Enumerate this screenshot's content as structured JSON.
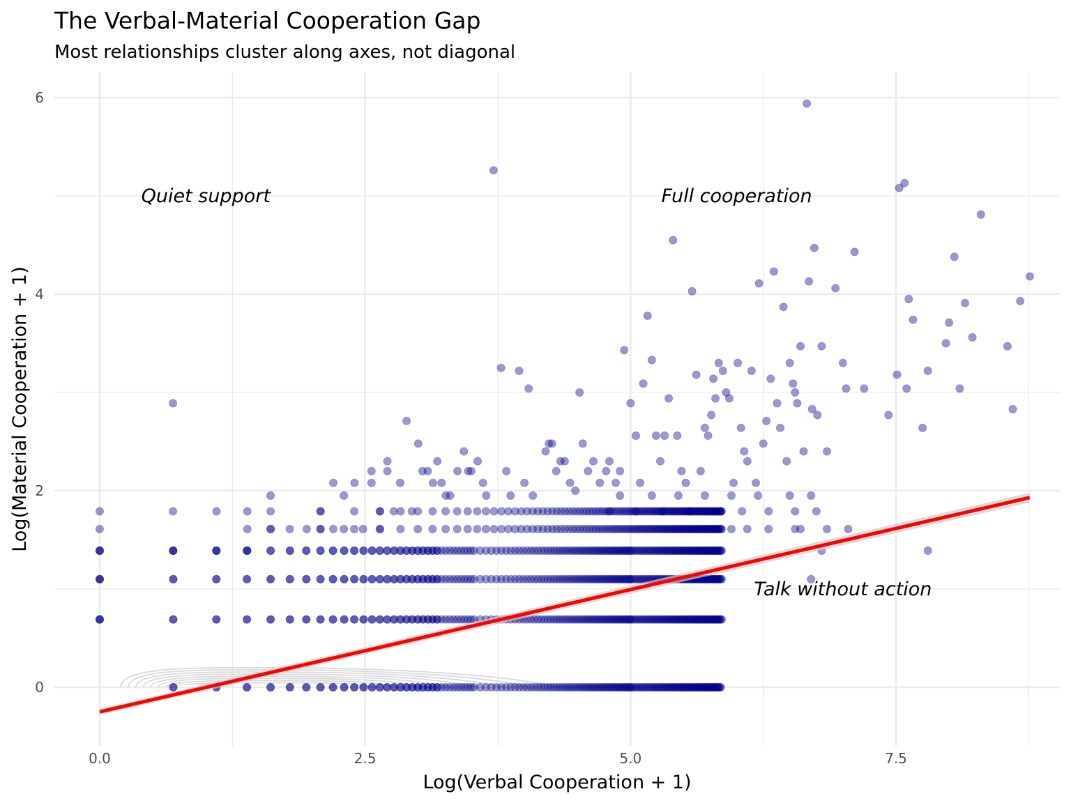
{
  "chart_data": {
    "type": "scatter",
    "title": "The Verbal-Material Cooperation Gap",
    "subtitle": "Most relationships cluster along axes, not diagonal",
    "xlabel": "Log(Verbal Cooperation + 1)",
    "ylabel": "Log(Material Cooperation + 1)",
    "xlim": [
      -0.4,
      9.2
    ],
    "ylim": [
      -0.6,
      6.25
    ],
    "x_ticks": [
      0,
      2.5,
      5,
      7.5
    ],
    "x_tick_labels": [
      "0.0",
      "2.5",
      "5.0",
      "7.5"
    ],
    "y_ticks": [
      0,
      2,
      4,
      6
    ],
    "y_tick_labels": [
      "0",
      "2",
      "4",
      "6"
    ],
    "grid": true,
    "legend": "none",
    "point_color": "#00008b",
    "point_alpha": 0.4,
    "fit_line": {
      "color": "#ff0000",
      "x": [
        0,
        8.76
      ],
      "y": [
        -0.25,
        1.93
      ]
    },
    "contour_color": "#d9d9d9",
    "annotations": [
      {
        "text": "Quiet support",
        "x": 1.0,
        "y": 5.0
      },
      {
        "text": "Full cooperation",
        "x": 6.0,
        "y": 5.0
      },
      {
        "text": "Talk without action",
        "x": 7.0,
        "y": 1.0
      }
    ],
    "band_points": [
      {
        "y": 0,
        "xmin": 0.69,
        "xmax": 5.85
      },
      {
        "y": 0.69,
        "xmin": 0.0,
        "xmax": 6.2
      },
      {
        "y": 1.1,
        "xmin": 0.0,
        "xmax": 6.1
      },
      {
        "y": 1.39,
        "xmin": 0.0,
        "xmax": 5.9
      }
    ],
    "points": [
      [
        0.0,
        1.79
      ],
      [
        0.0,
        1.61
      ],
      [
        0.69,
        2.89
      ],
      [
        0.69,
        1.79
      ],
      [
        0.69,
        1.39
      ],
      [
        1.1,
        1.79
      ],
      [
        1.1,
        1.39
      ],
      [
        1.39,
        1.79
      ],
      [
        1.39,
        1.61
      ],
      [
        1.39,
        1.39
      ],
      [
        1.61,
        1.95
      ],
      [
        1.61,
        1.61
      ],
      [
        1.79,
        1.61
      ],
      [
        1.95,
        1.61
      ],
      [
        2.08,
        1.79
      ],
      [
        2.08,
        1.61
      ],
      [
        2.2,
        2.08
      ],
      [
        2.2,
        1.61
      ],
      [
        2.3,
        1.95
      ],
      [
        2.3,
        1.61
      ],
      [
        2.4,
        2.08
      ],
      [
        2.48,
        1.61
      ],
      [
        2.56,
        2.2
      ],
      [
        2.56,
        2.08
      ],
      [
        2.64,
        1.79
      ],
      [
        2.64,
        1.61
      ],
      [
        2.71,
        2.3
      ],
      [
        2.71,
        2.2
      ],
      [
        2.77,
        1.79
      ],
      [
        2.83,
        2.08
      ],
      [
        2.89,
        2.71
      ],
      [
        2.94,
        1.79
      ],
      [
        3.0,
        2.48
      ],
      [
        3.04,
        2.2
      ],
      [
        3.09,
        2.2
      ],
      [
        3.14,
        2.08
      ],
      [
        3.18,
        2.3
      ],
      [
        3.22,
        2.08
      ],
      [
        3.26,
        1.95
      ],
      [
        3.3,
        1.95
      ],
      [
        3.37,
        2.2
      ],
      [
        3.43,
        2.4
      ],
      [
        3.47,
        2.2
      ],
      [
        3.5,
        2.2
      ],
      [
        3.56,
        2.3
      ],
      [
        3.61,
        2.08
      ],
      [
        3.64,
        1.95
      ],
      [
        3.71,
        5.26
      ],
      [
        3.78,
        3.25
      ],
      [
        3.83,
        2.2
      ],
      [
        3.87,
        1.95
      ],
      [
        3.95,
        3.22
      ],
      [
        4.0,
        2.08
      ],
      [
        4.04,
        3.04
      ],
      [
        4.08,
        1.95
      ],
      [
        4.2,
        2.4
      ],
      [
        4.23,
        2.48
      ],
      [
        4.26,
        2.48
      ],
      [
        4.3,
        2.2
      ],
      [
        4.34,
        2.3
      ],
      [
        4.38,
        2.3
      ],
      [
        4.43,
        2.08
      ],
      [
        4.48,
        2.0
      ],
      [
        4.52,
        3.0
      ],
      [
        4.55,
        2.48
      ],
      [
        4.6,
        2.2
      ],
      [
        4.65,
        2.3
      ],
      [
        4.71,
        2.08
      ],
      [
        4.77,
        2.2
      ],
      [
        4.8,
        2.3
      ],
      [
        4.86,
        2.08
      ],
      [
        4.9,
        2.2
      ],
      [
        4.94,
        3.43
      ],
      [
        5.0,
        2.89
      ],
      [
        5.05,
        2.56
      ],
      [
        5.09,
        2.08
      ],
      [
        5.12,
        3.09
      ],
      [
        5.16,
        3.78
      ],
      [
        5.2,
        3.33
      ],
      [
        5.24,
        2.56
      ],
      [
        5.28,
        2.3
      ],
      [
        5.32,
        2.56
      ],
      [
        5.36,
        2.94
      ],
      [
        5.4,
        4.55
      ],
      [
        5.44,
        2.56
      ],
      [
        5.48,
        2.2
      ],
      [
        5.52,
        2.08
      ],
      [
        5.58,
        4.03
      ],
      [
        5.62,
        3.18
      ],
      [
        5.66,
        2.2
      ],
      [
        5.7,
        2.64
      ],
      [
        5.73,
        2.56
      ],
      [
        5.76,
        2.77
      ],
      [
        5.78,
        3.14
      ],
      [
        5.8,
        2.94
      ],
      [
        5.83,
        3.3
      ],
      [
        5.87,
        3.22
      ],
      [
        5.9,
        3.0
      ],
      [
        5.93,
        2.94
      ],
      [
        5.97,
        2.08
      ],
      [
        6.01,
        3.3
      ],
      [
        6.04,
        2.64
      ],
      [
        6.07,
        2.4
      ],
      [
        6.1,
        2.3
      ],
      [
        6.14,
        3.22
      ],
      [
        6.18,
        2.08
      ],
      [
        6.21,
        4.11
      ],
      [
        6.25,
        2.48
      ],
      [
        6.28,
        2.71
      ],
      [
        6.32,
        3.14
      ],
      [
        6.35,
        4.23
      ],
      [
        6.38,
        2.89
      ],
      [
        6.41,
        2.64
      ],
      [
        6.44,
        3.87
      ],
      [
        6.47,
        2.3
      ],
      [
        6.5,
        3.3
      ],
      [
        6.53,
        3.09
      ],
      [
        6.55,
        3.0
      ],
      [
        6.57,
        2.89
      ],
      [
        6.6,
        3.47
      ],
      [
        6.63,
        2.4
      ],
      [
        6.66,
        5.94
      ],
      [
        6.68,
        4.13
      ],
      [
        6.71,
        2.83
      ],
      [
        6.73,
        4.47
      ],
      [
        6.76,
        2.77
      ],
      [
        6.8,
        3.47
      ],
      [
        6.85,
        2.4
      ],
      [
        6.93,
        4.06
      ],
      [
        7.0,
        3.3
      ],
      [
        7.03,
        3.04
      ],
      [
        7.11,
        4.43
      ],
      [
        7.2,
        3.04
      ],
      [
        7.43,
        2.77
      ],
      [
        7.51,
        3.18
      ],
      [
        7.53,
        5.08
      ],
      [
        7.58,
        5.13
      ],
      [
        7.6,
        3.04
      ],
      [
        7.62,
        3.95
      ],
      [
        7.66,
        3.74
      ],
      [
        7.75,
        2.64
      ],
      [
        7.8,
        3.22
      ],
      [
        7.97,
        3.5
      ],
      [
        8.0,
        3.71
      ],
      [
        8.05,
        4.38
      ],
      [
        8.1,
        3.04
      ],
      [
        8.15,
        3.91
      ],
      [
        8.22,
        3.56
      ],
      [
        8.3,
        4.81
      ],
      [
        8.55,
        3.47
      ],
      [
        8.6,
        2.83
      ],
      [
        8.67,
        3.93
      ],
      [
        8.76,
        4.18
      ],
      [
        4.8,
        1.79
      ],
      [
        4.9,
        1.95
      ],
      [
        5.05,
        1.79
      ],
      [
        5.2,
        1.95
      ],
      [
        5.3,
        1.79
      ],
      [
        5.45,
        1.95
      ],
      [
        5.55,
        1.79
      ],
      [
        5.7,
        1.95
      ],
      [
        5.85,
        1.79
      ],
      [
        5.95,
        1.95
      ],
      [
        6.05,
        1.79
      ],
      [
        6.2,
        1.95
      ],
      [
        6.3,
        1.79
      ],
      [
        6.5,
        1.95
      ],
      [
        6.6,
        1.61
      ],
      [
        6.7,
        1.95
      ],
      [
        6.75,
        1.79
      ],
      [
        6.85,
        1.61
      ],
      [
        7.05,
        1.61
      ],
      [
        6.7,
        1.1
      ],
      [
        6.8,
        1.39
      ],
      [
        7.8,
        1.39
      ],
      [
        6.55,
        1.79
      ],
      [
        6.55,
        1.61
      ],
      [
        6.3,
        1.61
      ],
      [
        6.1,
        1.61
      ],
      [
        5.95,
        1.61
      ]
    ]
  }
}
